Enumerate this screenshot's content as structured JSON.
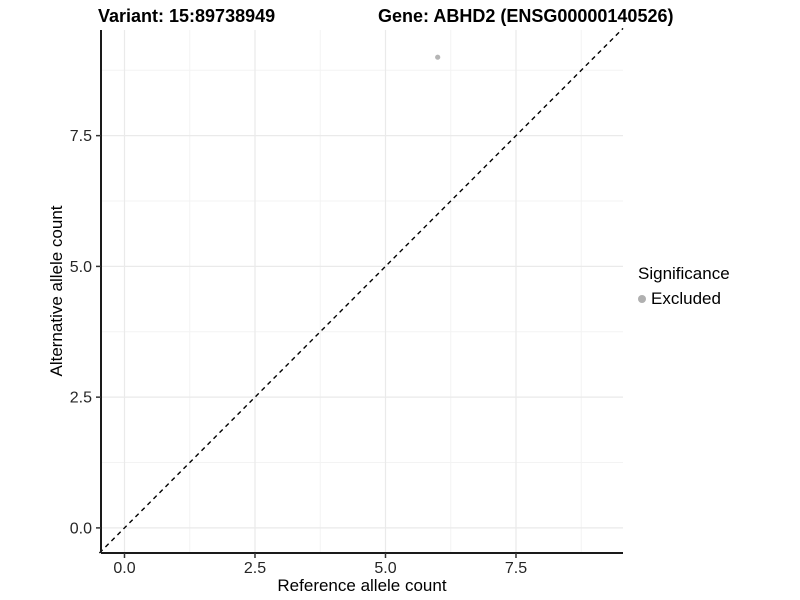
{
  "chart_data": {
    "type": "scatter",
    "title_variant": "Variant: 15:89738949",
    "title_gene": "Gene: ABHD2 (ENSG00000140526)",
    "xlabel": "Reference allele count",
    "ylabel": "Alternative allele count",
    "xlim": [
      -0.45,
      9.55
    ],
    "ylim": [
      -0.48,
      9.52
    ],
    "x_ticks": [
      0,
      2.5,
      5,
      7.5
    ],
    "y_ticks": [
      0,
      2.5,
      5,
      7.5
    ],
    "x_tick_labels": [
      "0.0",
      "2.5",
      "5.0",
      "7.5"
    ],
    "y_tick_labels": [
      "0.0",
      "2.5",
      "5.0",
      "7.5"
    ],
    "minor_gridlines": [
      1.25,
      3.75,
      6.25,
      8.75
    ],
    "grid": "on",
    "identity_line": {
      "style": "dashed",
      "equation": "y = x"
    },
    "series": [
      {
        "name": "Excluded",
        "color": "#b5b5b5",
        "points": [
          {
            "x": 6,
            "y": 9
          }
        ]
      }
    ],
    "legend": {
      "position": "right",
      "title": "Significance",
      "items": [
        {
          "label": "Excluded",
          "color": "#b0b0b0",
          "marker": "circle"
        }
      ]
    }
  },
  "colors": {
    "background": "#ffffff",
    "grid_major": "#eaeaea",
    "grid_minor": "#f3f3f3",
    "axis_line": "#1a1a1a",
    "tick_mark": "#333333",
    "tick_label": "#262626",
    "identity_line": "#000000"
  }
}
